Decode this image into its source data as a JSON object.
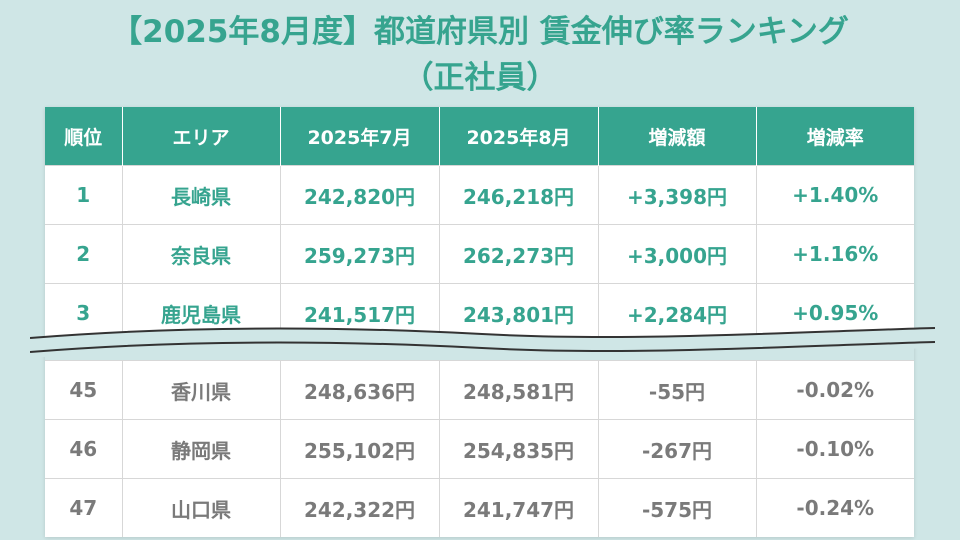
{
  "title": "【2025年8月度】都道府県別 賃金伸び率ランキング",
  "subtitle": "（正社員）",
  "table": {
    "headers": [
      "順位",
      "エリア",
      "2025年7月",
      "2025年8月",
      "増減額",
      "増減率"
    ],
    "top_rows": [
      {
        "rank": "1",
        "area": "長崎県",
        "jul": "242,820円",
        "aug": "246,218円",
        "diff": "+3,398円",
        "rate": "+1.40%"
      },
      {
        "rank": "2",
        "area": "奈良県",
        "jul": "259,273円",
        "aug": "262,273円",
        "diff": "+3,000円",
        "rate": "+1.16%"
      },
      {
        "rank": "3",
        "area": "鹿児島県",
        "jul": "241,517円",
        "aug": "243,801円",
        "diff": "+2,284円",
        "rate": "+0.95%"
      }
    ],
    "bottom_rows": [
      {
        "rank": "45",
        "area": "香川県",
        "jul": "248,636円",
        "aug": "248,581円",
        "diff": "-55円",
        "rate": "-0.02%"
      },
      {
        "rank": "46",
        "area": "静岡県",
        "jul": "255,102円",
        "aug": "254,835円",
        "diff": "-267円",
        "rate": "-0.10%"
      },
      {
        "rank": "47",
        "area": "山口県",
        "jul": "242,322円",
        "aug": "241,747円",
        "diff": "-575円",
        "rate": "-0.24%"
      }
    ]
  },
  "colors": {
    "accent": "#36a48f",
    "background": "#cfe6e6",
    "muted_text": "#7a7a7a"
  }
}
